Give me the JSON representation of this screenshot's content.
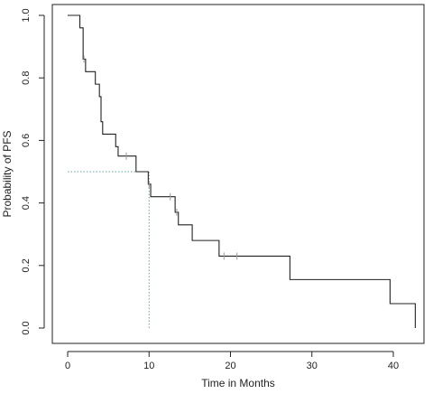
{
  "chart_data": {
    "type": "line",
    "subtype": "kaplan-meier step",
    "title": "",
    "xlabel": "Time in Months",
    "ylabel": "Probability of PFS",
    "xlim": [
      0,
      43
    ],
    "ylim": [
      0,
      1
    ],
    "xticks": [
      0,
      10,
      20,
      30,
      40
    ],
    "yticks": [
      0.0,
      0.2,
      0.4,
      0.6,
      0.8,
      1.0
    ],
    "ytick_labels": [
      "0.0",
      "0.2",
      "0.4",
      "0.6",
      "0.8",
      "1.0"
    ],
    "grid": false,
    "series": [
      {
        "steps": [
          {
            "x": 0.0,
            "y": 1.0
          },
          {
            "x": 1.5,
            "y": 0.96
          },
          {
            "x": 1.9,
            "y": 0.86
          },
          {
            "x": 2.2,
            "y": 0.82
          },
          {
            "x": 3.4,
            "y": 0.78
          },
          {
            "x": 3.9,
            "y": 0.74
          },
          {
            "x": 4.1,
            "y": 0.66
          },
          {
            "x": 4.3,
            "y": 0.62
          },
          {
            "x": 5.9,
            "y": 0.58
          },
          {
            "x": 6.2,
            "y": 0.55
          },
          {
            "x": 8.4,
            "y": 0.5
          },
          {
            "x": 9.9,
            "y": 0.46
          },
          {
            "x": 10.2,
            "y": 0.42
          },
          {
            "x": 13.2,
            "y": 0.37
          },
          {
            "x": 13.6,
            "y": 0.33
          },
          {
            "x": 15.3,
            "y": 0.28
          },
          {
            "x": 18.6,
            "y": 0.23
          },
          {
            "x": 27.3,
            "y": 0.155
          },
          {
            "x": 39.6,
            "y": 0.078
          },
          {
            "x": 42.7,
            "y": 0.0
          }
        ],
        "censored": [
          {
            "x": 2.0,
            "y": 0.86
          },
          {
            "x": 7.2,
            "y": 0.55
          },
          {
            "x": 10.0,
            "y": 0.46
          },
          {
            "x": 12.6,
            "y": 0.42
          },
          {
            "x": 13.4,
            "y": 0.37
          },
          {
            "x": 19.2,
            "y": 0.23
          },
          {
            "x": 20.8,
            "y": 0.23
          }
        ]
      }
    ],
    "median_line": {
      "x": 10.0,
      "y": 0.5
    },
    "colors": {
      "curve": "#222222",
      "censor": "#9a9a9a",
      "median": "#5fa8a8"
    }
  }
}
